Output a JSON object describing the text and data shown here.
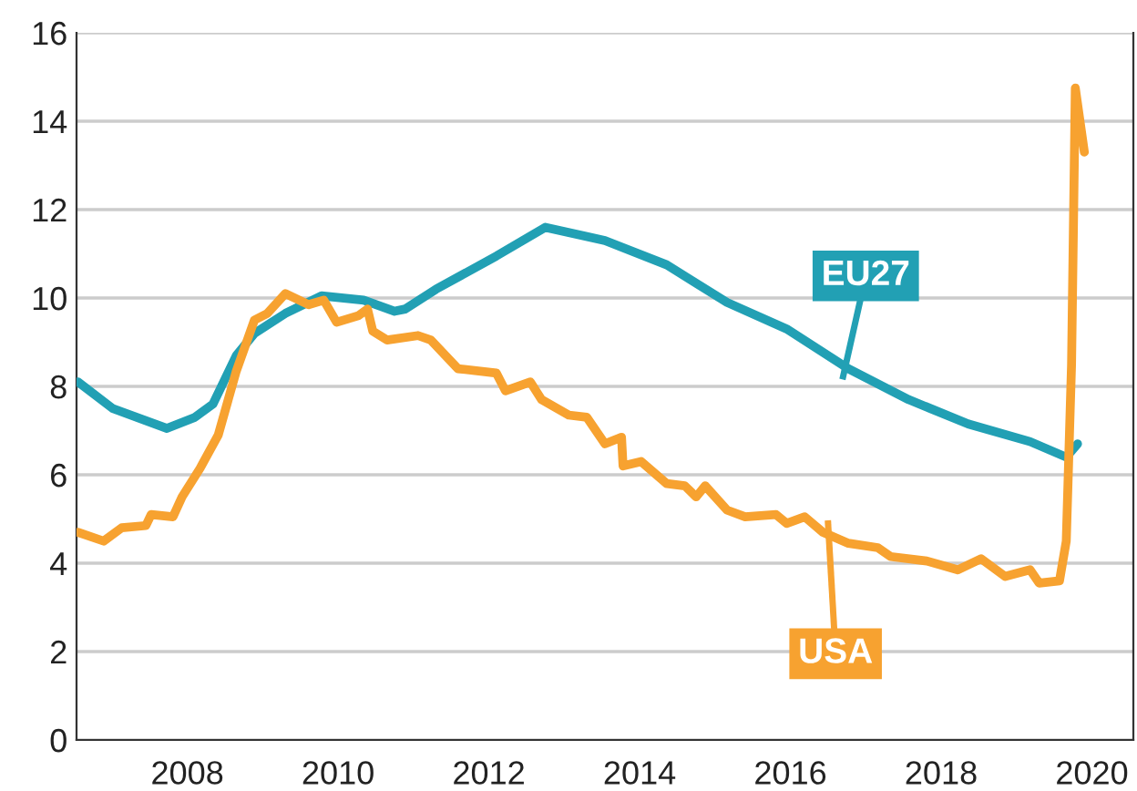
{
  "chart_data": {
    "type": "line",
    "xlim": [
      2006.53,
      2020.55
    ],
    "xticks": [
      2008,
      2010,
      2012,
      2014,
      2016,
      2018,
      2020
    ],
    "ylim": [
      0,
      16
    ],
    "yticks": [
      0,
      2,
      4,
      6,
      8,
      10,
      12,
      14,
      16
    ],
    "grid": "y",
    "legend": false,
    "marker": "none",
    "line_style": "solid",
    "series": [
      {
        "name": "EU27",
        "color": "#22a0b4",
        "x": [
          2006.55,
          2007.01,
          2007.73,
          2008.1,
          2008.34,
          2008.65,
          2008.89,
          2009.3,
          2009.78,
          2010.34,
          2010.75,
          2010.89,
          2011.3,
          2012.1,
          2012.75,
          2013.54,
          2014.36,
          2015.16,
          2015.95,
          2016.77,
          2017.57,
          2018.36,
          2019.18,
          2019.66,
          2019.81
        ],
        "values": [
          8.1,
          7.5,
          7.05,
          7.3,
          7.6,
          8.7,
          9.2,
          9.65,
          10.05,
          9.95,
          9.7,
          9.75,
          10.2,
          10.95,
          11.6,
          11.3,
          10.75,
          9.9,
          9.3,
          8.4,
          7.7,
          7.15,
          6.75,
          6.4,
          6.7
        ]
      },
      {
        "name": "USA",
        "color": "#f7a230",
        "x": [
          2006.55,
          2006.89,
          2007.13,
          2007.45,
          2007.52,
          2007.81,
          2007.93,
          2008.17,
          2008.41,
          2008.65,
          2008.89,
          2009.06,
          2009.3,
          2009.61,
          2009.81,
          2009.98,
          2010.27,
          2010.39,
          2010.46,
          2010.65,
          2011.06,
          2011.23,
          2011.59,
          2012.1,
          2012.22,
          2012.55,
          2012.7,
          2013.06,
          2013.3,
          2013.54,
          2013.76,
          2013.78,
          2014.02,
          2014.36,
          2014.6,
          2014.75,
          2014.87,
          2015.16,
          2015.4,
          2015.81,
          2015.95,
          2016.19,
          2016.43,
          2016.77,
          2017.16,
          2017.33,
          2017.81,
          2018.22,
          2018.53,
          2018.85,
          2019.18,
          2019.3,
          2019.57,
          2019.66,
          2019.73,
          2019.78,
          2019.9
        ],
        "values": [
          4.7,
          4.5,
          4.8,
          4.85,
          5.1,
          5.05,
          5.5,
          6.15,
          6.9,
          8.35,
          9.5,
          9.65,
          10.1,
          9.85,
          9.95,
          9.45,
          9.6,
          9.75,
          9.25,
          9.05,
          9.15,
          9.05,
          8.4,
          8.3,
          7.9,
          8.1,
          7.7,
          7.35,
          7.3,
          6.7,
          6.85,
          6.2,
          6.3,
          5.8,
          5.75,
          5.5,
          5.75,
          5.2,
          5.05,
          5.1,
          4.9,
          5.05,
          4.7,
          4.45,
          4.35,
          4.15,
          4.05,
          3.85,
          4.1,
          3.7,
          3.85,
          3.55,
          3.6,
          4.5,
          8.5,
          14.75,
          13.3
        ]
      }
    ]
  }
}
